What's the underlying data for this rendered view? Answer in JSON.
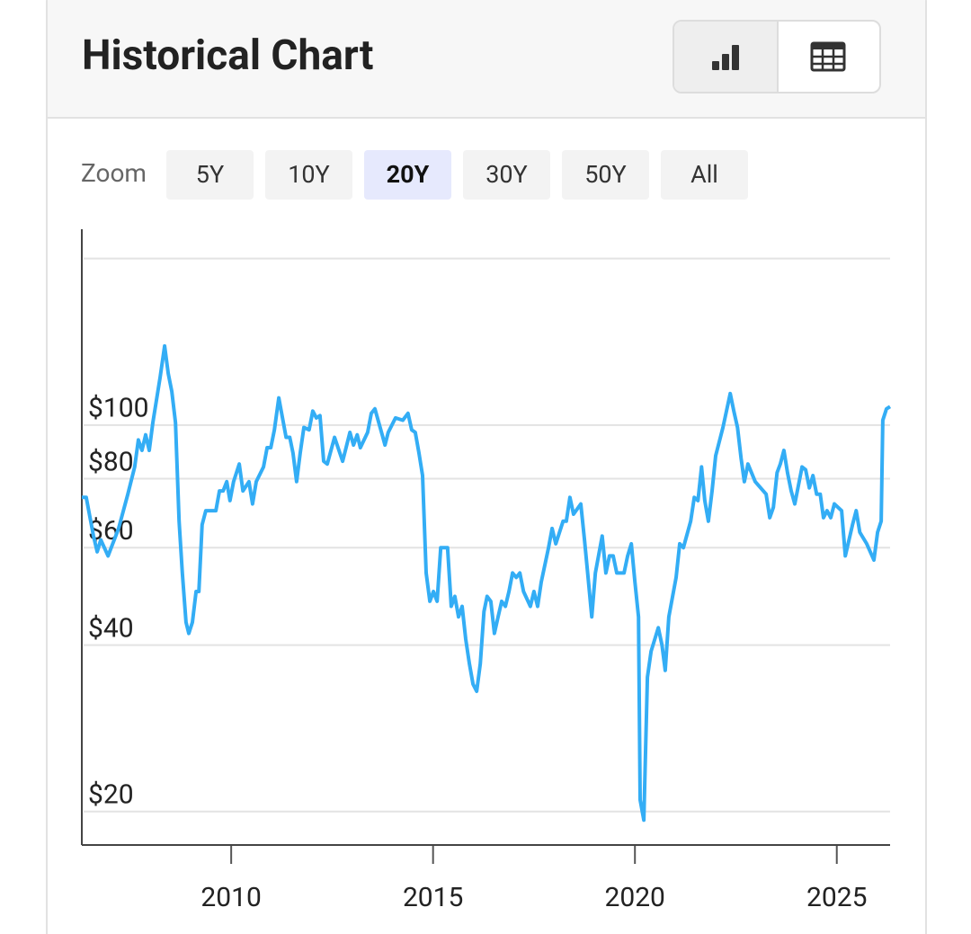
{
  "header": {
    "title": "Historical Chart"
  },
  "zoom": {
    "label": "Zoom",
    "options": [
      "5Y",
      "10Y",
      "20Y",
      "30Y",
      "50Y",
      "All"
    ],
    "selected": 2
  },
  "chart_data": {
    "type": "line",
    "yscale": "log",
    "grid": true,
    "xlim": [
      2006.3,
      2026.32
    ],
    "xticks": [
      2010,
      2015,
      2020,
      2025
    ],
    "ylim": [
      17.4,
      226
    ],
    "yticks": [
      {
        "value": 20,
        "label": "$20"
      },
      {
        "value": 40,
        "label": "$40"
      },
      {
        "value": 60,
        "label": "$60"
      },
      {
        "value": 80,
        "label": "$80"
      },
      {
        "value": 100,
        "label": "$100"
      },
      {
        "value": 200,
        "label": null
      }
    ],
    "series": [
      {
        "color": "#33adf5",
        "x": [
          2006.3,
          2006.41,
          2006.59,
          2006.68,
          2006.77,
          2006.95,
          2007.21,
          2007.44,
          2007.61,
          2007.7,
          2007.79,
          2007.88,
          2007.97,
          2008.06,
          2008.24,
          2008.35,
          2008.44,
          2008.53,
          2008.62,
          2008.71,
          2008.79,
          2008.88,
          2008.95,
          2009.04,
          2009.13,
          2009.2,
          2009.28,
          2009.37,
          2009.62,
          2009.71,
          2009.8,
          2009.89,
          2009.97,
          2010.06,
          2010.2,
          2010.29,
          2010.44,
          2010.53,
          2010.62,
          2010.8,
          2010.89,
          2010.98,
          2011.07,
          2011.18,
          2011.27,
          2011.36,
          2011.45,
          2011.53,
          2011.62,
          2011.71,
          2011.8,
          2011.93,
          2012.02,
          2012.11,
          2012.2,
          2012.29,
          2012.38,
          2012.56,
          2012.76,
          2012.94,
          2013.03,
          2013.12,
          2013.2,
          2013.38,
          2013.47,
          2013.56,
          2013.74,
          2013.81,
          2013.89,
          2014.07,
          2014.25,
          2014.38,
          2014.47,
          2014.56,
          2014.65,
          2014.74,
          2014.83,
          2014.92,
          2015.01,
          2015.1,
          2015.19,
          2015.36,
          2015.45,
          2015.54,
          2015.63,
          2015.72,
          2015.81,
          2015.9,
          2015.99,
          2016.08,
          2016.17,
          2016.26,
          2016.34,
          2016.43,
          2016.52,
          2016.61,
          2016.7,
          2016.79,
          2016.88,
          2016.97,
          2017.06,
          2017.15,
          2017.24,
          2017.41,
          2017.5,
          2017.59,
          2017.68,
          2017.86,
          2017.95,
          2018.04,
          2018.22,
          2018.3,
          2018.39,
          2018.48,
          2018.66,
          2018.75,
          2018.84,
          2018.93,
          2019.02,
          2019.19,
          2019.28,
          2019.37,
          2019.46,
          2019.55,
          2019.73,
          2019.82,
          2019.91,
          2020.0,
          2020.09,
          2020.13,
          2020.22,
          2020.31,
          2020.4,
          2020.58,
          2020.67,
          2020.75,
          2020.84,
          2021.02,
          2021.11,
          2021.2,
          2021.38,
          2021.47,
          2021.56,
          2021.65,
          2021.73,
          2021.82,
          2021.91,
          2022.0,
          2022.18,
          2022.36,
          2022.45,
          2022.54,
          2022.63,
          2022.71,
          2022.8,
          2022.98,
          2023.25,
          2023.34,
          2023.43,
          2023.52,
          2023.6,
          2023.69,
          2023.78,
          2023.87,
          2023.96,
          2024.14,
          2024.23,
          2024.32,
          2024.41,
          2024.5,
          2024.59,
          2024.67,
          2024.76,
          2024.85,
          2024.94,
          2025.12,
          2025.21,
          2025.39,
          2025.48,
          2025.57,
          2025.74,
          2025.92,
          2026.01,
          2026.1,
          2026.14,
          2026.23,
          2026.32
        ],
        "values": [
          74,
          74,
          63,
          59,
          62,
          58,
          65,
          75,
          84,
          94,
          90,
          96,
          90,
          101,
          122,
          139,
          124,
          115,
          101,
          67,
          54,
          44,
          42,
          44,
          50,
          50,
          66,
          70,
          70,
          76,
          76,
          79,
          73,
          79,
          85,
          76,
          79,
          72,
          79,
          84,
          91,
          91,
          98,
          112,
          103,
          95,
          95,
          89,
          79,
          89,
          99,
          98,
          106,
          103,
          104,
          86,
          85,
          95,
          86,
          97,
          92,
          96,
          91,
          97,
          105,
          107,
          96,
          92,
          97,
          103,
          102,
          105,
          98,
          97,
          89,
          81,
          54,
          48,
          50,
          48,
          60,
          60,
          47,
          49,
          45,
          47,
          41,
          37,
          34,
          33,
          37,
          46,
          49,
          48,
          42,
          45,
          48,
          47,
          50,
          54,
          53,
          54,
          50,
          47,
          50,
          47,
          52,
          60,
          65,
          61,
          67,
          67,
          74,
          69,
          72,
          62,
          53,
          45,
          54,
          63,
          54,
          58,
          58,
          54,
          54,
          58,
          61,
          52,
          45,
          21,
          19.3,
          35,
          39,
          43,
          40,
          36,
          45,
          53,
          61,
          60,
          67,
          74,
          73,
          84,
          73,
          67,
          76,
          88,
          99,
          114,
          106,
          99,
          87,
          79,
          85,
          79,
          75,
          68,
          71,
          82,
          85,
          90,
          82,
          76,
          72,
          84,
          83,
          77,
          81,
          75,
          75,
          68,
          70,
          68,
          72,
          70,
          58,
          66,
          70,
          64,
          61,
          57,
          64,
          67,
          102,
          107,
          108
        ]
      }
    ]
  }
}
